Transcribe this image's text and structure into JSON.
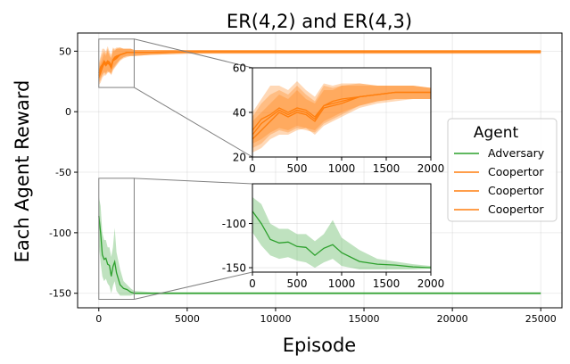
{
  "chart_data": {
    "type": "line",
    "title": "ER(4,2) and ER(4,3)",
    "xlabel": "Episode",
    "ylabel": "Each Agent Reward",
    "xlim": [
      -1200,
      26200
    ],
    "ylim": [
      -162,
      65
    ],
    "xticks": [
      0,
      5000,
      10000,
      15000,
      20000,
      25000
    ],
    "yticks": [
      -150,
      -100,
      -50,
      0,
      50
    ],
    "grid": true,
    "legend": {
      "title": "Agent",
      "placement": "center-right",
      "entries": [
        "Adversary",
        "Coopertor",
        "Coopertor",
        "Coopertor"
      ]
    },
    "colors": {
      "Adversary": "#2ca02c",
      "Coopertor": "#ff7f0e"
    },
    "series": [
      {
        "name": "Adversary",
        "color": "#2ca02c",
        "x": [
          0,
          100,
          200,
          300,
          400,
          500,
          600,
          700,
          800,
          900,
          1000,
          1200,
          1400,
          1600,
          1800,
          2000,
          3000,
          5000,
          10000,
          15000,
          20000,
          25000
        ],
        "y": [
          -86,
          -100,
          -118,
          -122,
          -121,
          -126,
          -127,
          -136,
          -128,
          -124,
          -133,
          -143,
          -146,
          -147,
          -149,
          -150,
          -150,
          -150,
          -150,
          -150,
          -150,
          -150
        ],
        "lower": [
          -110,
          -125,
          -136,
          -140,
          -138,
          -142,
          -144,
          -150,
          -144,
          -140,
          -148,
          -152,
          -152,
          -152,
          -152,
          -151,
          -151,
          -151,
          -151,
          -151,
          -151,
          -151
        ],
        "upper": [
          -70,
          -78,
          -100,
          -106,
          -106,
          -112,
          -112,
          -120,
          -112,
          -96,
          -116,
          -130,
          -140,
          -143,
          -146,
          -148,
          -149,
          -149,
          -149,
          -149,
          -149,
          -149
        ]
      },
      {
        "name": "Coopertor",
        "color": "#ff7f0e",
        "x": [
          0,
          100,
          200,
          300,
          400,
          500,
          600,
          700,
          800,
          900,
          1000,
          1200,
          1400,
          1600,
          1800,
          2000,
          3000,
          5000,
          10000,
          15000,
          20000,
          25000
        ],
        "y": [
          28,
          32,
          36,
          40,
          38,
          40,
          39,
          36,
          42,
          43,
          44,
          47,
          48,
          49,
          49,
          49,
          49,
          49.5,
          49.5,
          49.5,
          49.5,
          49.5
        ],
        "lower": [
          22,
          24,
          28,
          30,
          30,
          32,
          33,
          30,
          34,
          36,
          38,
          42,
          44,
          45,
          46,
          46,
          47,
          48,
          48,
          48,
          48,
          48
        ],
        "upper": [
          36,
          40,
          44,
          48,
          46,
          50,
          46,
          44,
          50,
          50,
          52,
          52,
          52,
          52,
          52,
          51,
          51,
          51,
          51,
          51,
          51,
          51
        ]
      },
      {
        "name": "Coopertor",
        "color": "#ff7f0e",
        "x": [
          0,
          100,
          200,
          300,
          400,
          500,
          600,
          700,
          800,
          900,
          1000,
          1200,
          1400,
          1600,
          1800,
          2000,
          3000,
          5000,
          10000,
          15000,
          20000,
          25000
        ],
        "y": [
          30,
          35,
          38,
          41,
          39,
          41,
          40,
          37,
          43,
          44,
          45,
          47,
          48,
          49,
          49,
          49,
          49,
          49.5,
          49.5,
          49.5,
          49.5,
          49.5
        ],
        "lower": [
          24,
          26,
          30,
          32,
          31,
          33,
          32,
          31,
          35,
          37,
          39,
          43,
          45,
          46,
          46,
          46,
          47,
          48,
          48,
          48,
          48,
          48
        ],
        "upper": [
          38,
          44,
          48,
          50,
          48,
          52,
          48,
          45,
          52,
          51,
          52,
          53,
          52,
          52,
          52,
          51,
          51,
          51,
          51,
          51,
          51,
          51
        ]
      },
      {
        "name": "Coopertor",
        "color": "#ff7f0e",
        "x": [
          0,
          100,
          200,
          300,
          400,
          500,
          600,
          700,
          800,
          900,
          1000,
          1200,
          1400,
          1600,
          1800,
          2000,
          3000,
          5000,
          10000,
          15000,
          20000,
          25000
        ],
        "y": [
          32,
          37,
          39,
          42,
          40,
          42,
          41,
          38,
          43,
          45,
          46,
          47,
          48,
          49,
          49,
          49,
          49,
          49.5,
          49.5,
          49.5,
          49.5,
          49.5
        ],
        "lower": [
          26,
          28,
          31,
          33,
          32,
          34,
          33,
          32,
          36,
          38,
          40,
          43,
          45,
          46,
          46,
          46,
          47,
          48,
          48,
          48,
          48,
          48
        ],
        "upper": [
          40,
          46,
          52,
          52,
          50,
          54,
          50,
          47,
          53,
          52,
          53,
          53,
          52,
          52,
          52,
          51,
          51,
          51,
          51,
          51,
          51,
          51
        ]
      }
    ],
    "insets": [
      {
        "name": "coopertor-zoom",
        "xlim": [
          0,
          2000
        ],
        "ylim": [
          20,
          60
        ],
        "xticks": [
          0,
          500,
          1000,
          1500,
          2000
        ],
        "yticks": [
          20,
          40,
          60
        ],
        "series": [
          1,
          2,
          3
        ]
      },
      {
        "name": "adversary-zoom",
        "xlim": [
          0,
          2000
        ],
        "ylim": [
          -155,
          -55
        ],
        "xticks": [
          0,
          500,
          1000,
          1500,
          2000
        ],
        "yticks": [
          -150,
          -100
        ],
        "series": [
          0
        ]
      }
    ]
  }
}
